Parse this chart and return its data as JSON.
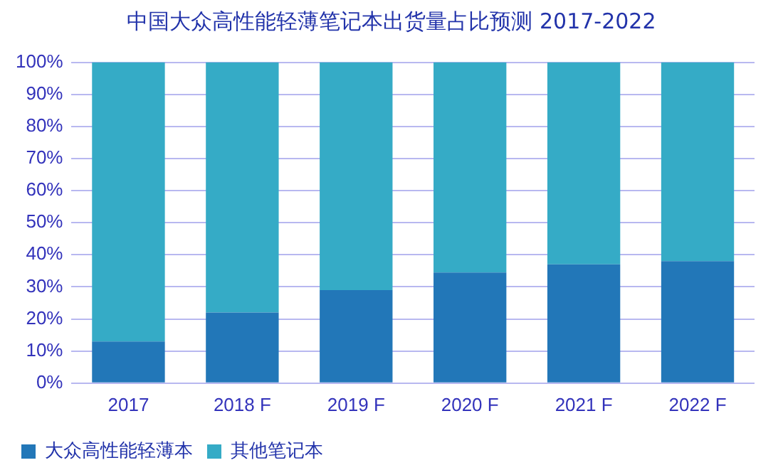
{
  "chart_data": {
    "type": "bar",
    "title": "中国大众高性能轻薄笔记本出货量占比预测 2017-2022",
    "categories": [
      "2017",
      "2018 F",
      "2019 F",
      "2020 F",
      "2021 F",
      "2022 F"
    ],
    "stacked": true,
    "series": [
      {
        "name": "大众高性能轻薄本",
        "color": "#2277b8",
        "values": [
          13,
          22,
          29,
          34.5,
          37,
          38
        ]
      },
      {
        "name": "其他笔记本",
        "color": "#35abc6",
        "values": [
          87,
          78,
          71,
          65.5,
          63,
          62
        ]
      }
    ],
    "ylim": [
      0,
      100
    ],
    "yticks": [
      {
        "value": 0,
        "label": "0%"
      },
      {
        "value": 10,
        "label": "10%"
      },
      {
        "value": 20,
        "label": "20%"
      },
      {
        "value": 30,
        "label": "30%"
      },
      {
        "value": 40,
        "label": "40%"
      },
      {
        "value": 50,
        "label": "50%"
      },
      {
        "value": 60,
        "label": "60%"
      },
      {
        "value": 70,
        "label": "70%"
      },
      {
        "value": 80,
        "label": "80%"
      },
      {
        "value": 90,
        "label": "90%"
      },
      {
        "value": 100,
        "label": "100%"
      }
    ],
    "grid": "y",
    "legend": "bottom"
  }
}
